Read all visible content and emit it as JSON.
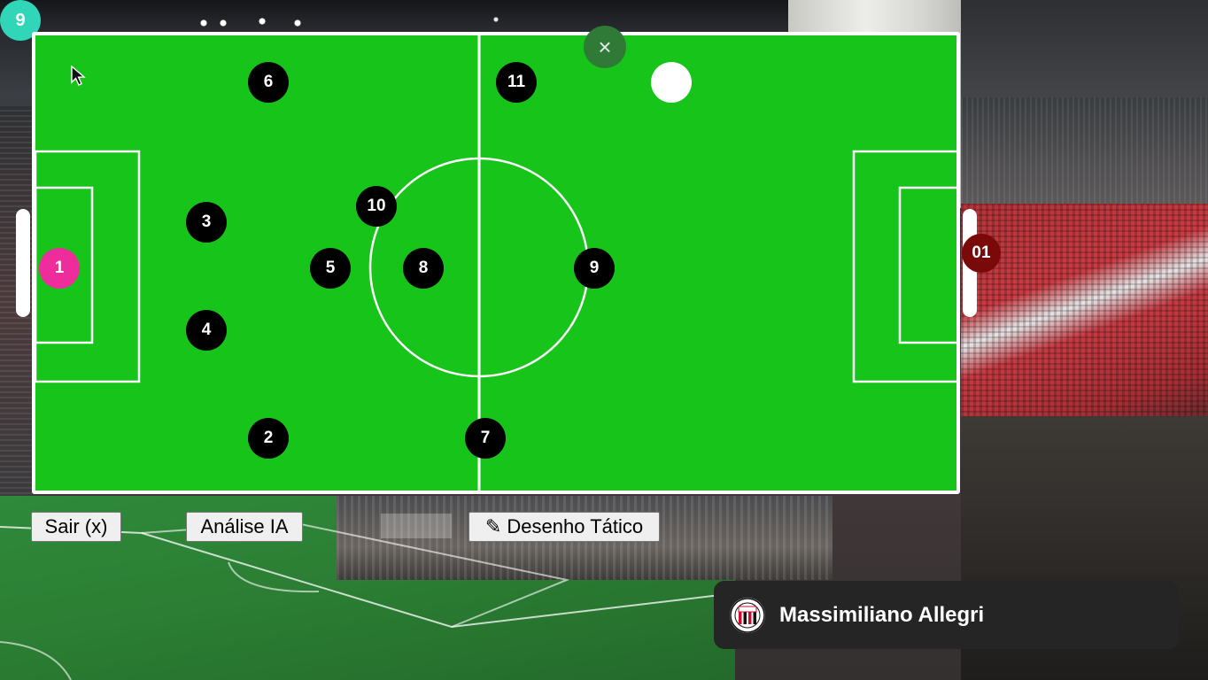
{
  "counter": {
    "value": "9"
  },
  "close_button": {
    "label": "×"
  },
  "players": [
    {
      "number": "6"
    },
    {
      "number": "11"
    },
    {
      "number": "3"
    },
    {
      "number": "10"
    },
    {
      "number": "1"
    },
    {
      "number": "5"
    },
    {
      "number": "8"
    },
    {
      "number": "9"
    },
    {
      "number": "4"
    },
    {
      "number": "2"
    },
    {
      "number": "7"
    }
  ],
  "opponent": {
    "number": "01"
  },
  "toolbar": {
    "exit_label": "Sair (x)",
    "ai_label": "Análise IA",
    "draw_label": "✎ Desenho Tático"
  },
  "coach": {
    "name": "Massimiliano Allegri"
  },
  "colors": {
    "pitch": "#16c41a",
    "player": "#000000",
    "goalkeeper": "#ee2c9c",
    "opponent": "#7a0a0a",
    "counter_badge": "#31d5b7"
  }
}
